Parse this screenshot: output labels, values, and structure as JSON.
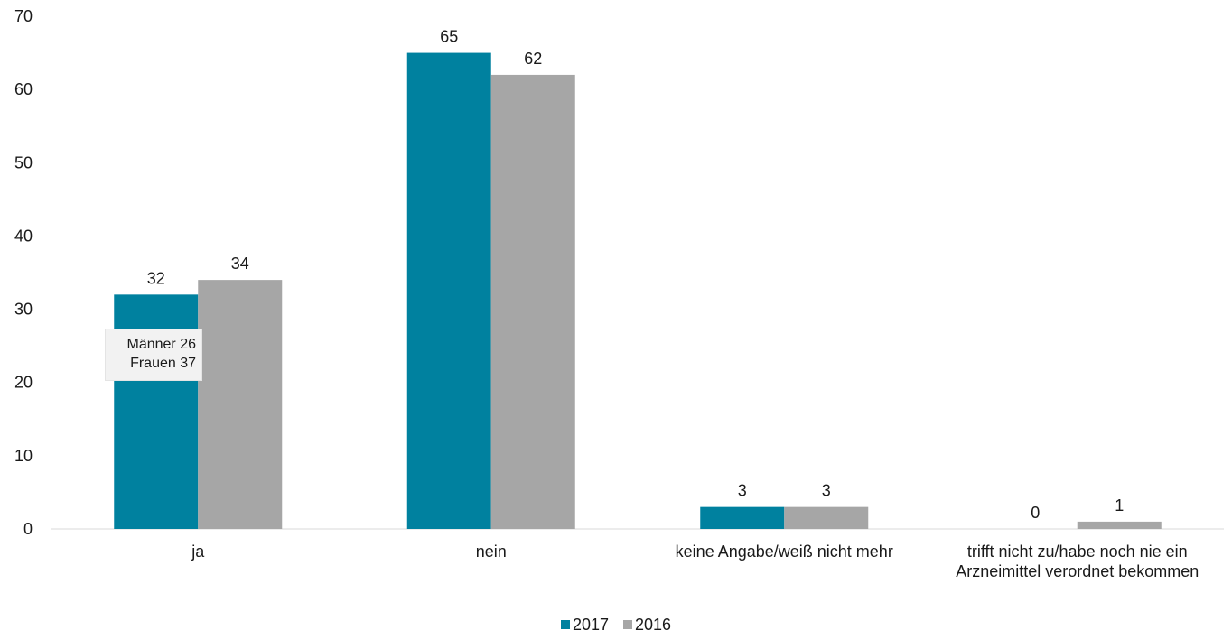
{
  "chart_data": {
    "type": "bar",
    "categories": [
      "ja",
      "nein",
      "keine Angabe/weiß nicht mehr",
      [
        "trifft nicht zu/habe noch nie ein",
        "Arzneimittel verordnet bekommen"
      ]
    ],
    "series": [
      {
        "name": "2017",
        "values": [
          32,
          65,
          3,
          0
        ],
        "color": "#00819f"
      },
      {
        "name": "2016",
        "values": [
          34,
          62,
          3,
          1
        ],
        "color": "#a6a6a6"
      }
    ],
    "ylim": [
      0,
      70
    ],
    "yticks": [
      0,
      10,
      20,
      30,
      40,
      50,
      60,
      70
    ],
    "grid": false,
    "legend": "bottom-center",
    "title": "",
    "xlabel": "",
    "ylabel": ""
  },
  "annotation": {
    "line1": "Männer 26",
    "line2": "Frauen 37"
  }
}
